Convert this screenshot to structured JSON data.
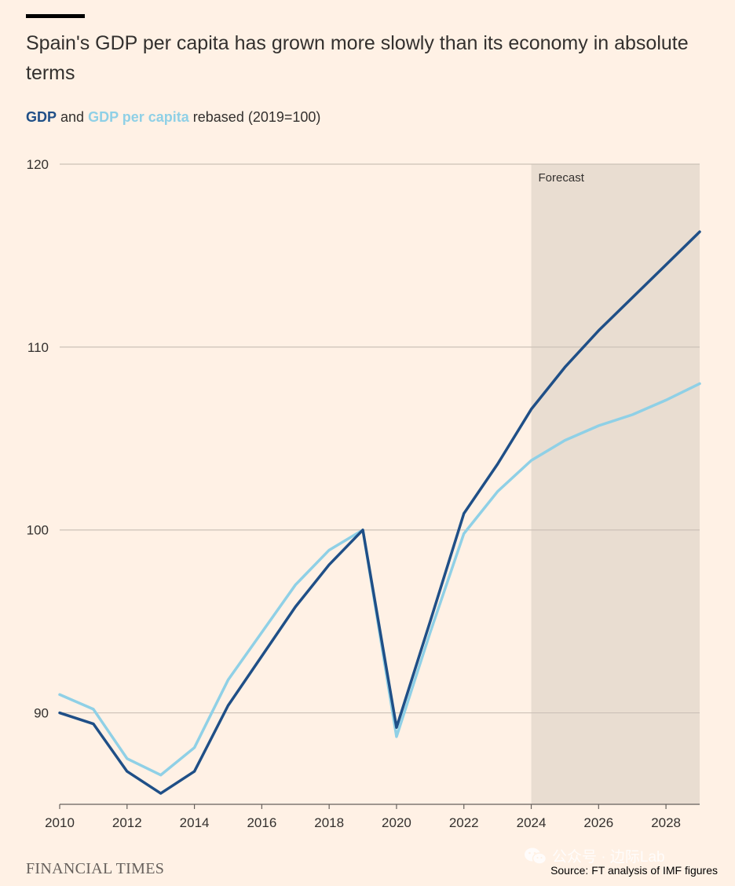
{
  "header": {
    "title": "Spain's GDP per capita has grown more slowly than its economy in absolute terms",
    "subtitle_gdp": "GDP",
    "subtitle_and": " and ",
    "subtitle_gdppc": "GDP per capita",
    "subtitle_rest": " rebased (2019=100)"
  },
  "footer": {
    "logo_text": "FINANCIAL TIMES",
    "watermark_text": "公众号 · 边际Lab",
    "watermark_icon": "wechat-icon",
    "source": "Source: FT analysis of IMF figures"
  },
  "colors": {
    "background": "#fff1e5",
    "gdp": "#1f4f87",
    "gdp_per_capita": "#8fd0e6",
    "forecast_band": "#e9ddd1",
    "grid": "#ccc1b7"
  },
  "chart_data": {
    "type": "line",
    "x": [
      2010,
      2011,
      2012,
      2013,
      2014,
      2015,
      2016,
      2017,
      2018,
      2019,
      2020,
      2021,
      2022,
      2023,
      2024,
      2025,
      2026,
      2027,
      2028,
      2029
    ],
    "series": [
      {
        "name": "GDP",
        "color": "#1f4f87",
        "values": [
          90.0,
          89.4,
          86.8,
          85.6,
          86.8,
          90.4,
          93.1,
          95.8,
          98.1,
          100.0,
          89.2,
          95.0,
          100.9,
          103.6,
          106.6,
          108.9,
          110.9,
          112.7,
          114.5,
          116.3
        ]
      },
      {
        "name": "GDP per capita",
        "color": "#8fd0e6",
        "values": [
          91.0,
          90.2,
          87.5,
          86.6,
          88.1,
          91.8,
          94.4,
          97.0,
          98.9,
          100.0,
          88.7,
          94.4,
          99.8,
          102.1,
          103.8,
          104.9,
          105.7,
          106.3,
          107.1,
          108.0
        ]
      }
    ],
    "xticks": [
      "2010",
      "2012",
      "2014",
      "2016",
      "2018",
      "2020",
      "2022",
      "2024",
      "2026",
      "2028"
    ],
    "yticks": [
      "90",
      "100",
      "110",
      "120"
    ],
    "xlim": [
      2010,
      2029
    ],
    "ylim": [
      85,
      120
    ],
    "forecast": {
      "label": "Forecast",
      "from": 2024,
      "to": 2029
    },
    "grid": true,
    "legend": "in subtitle"
  }
}
